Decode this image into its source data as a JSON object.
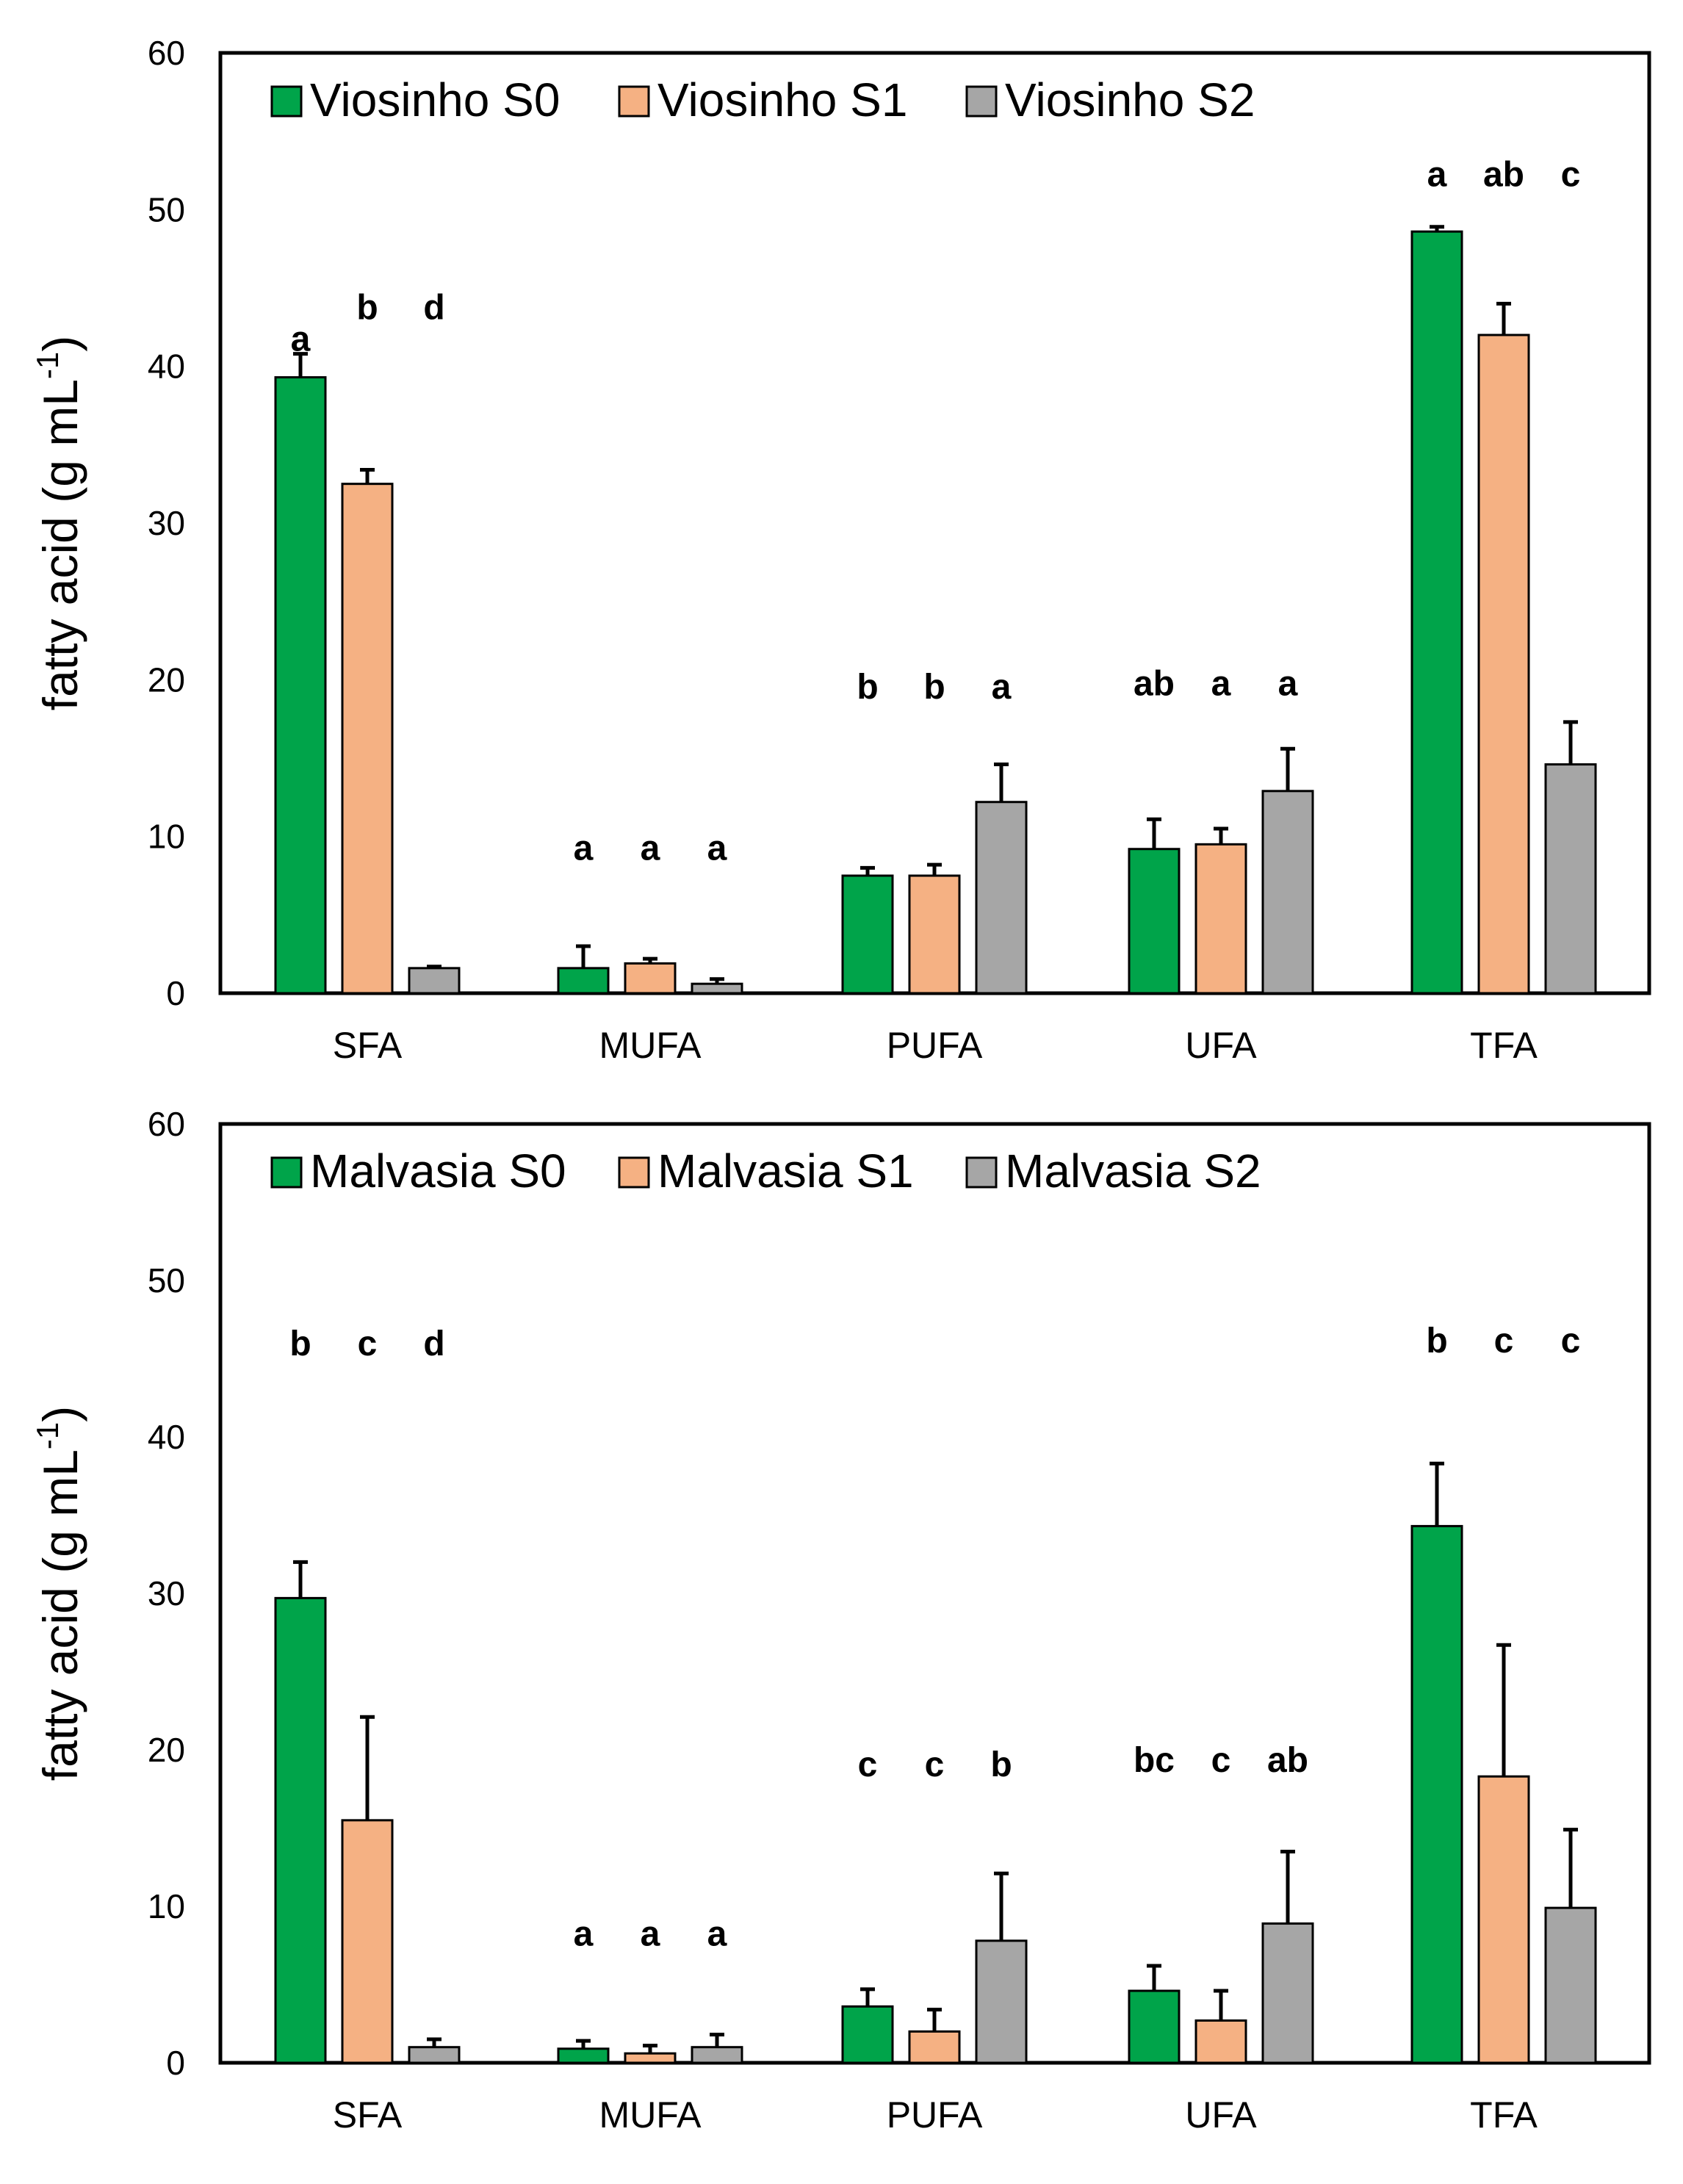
{
  "chart_data": [
    {
      "type": "bar",
      "title": "",
      "xlabel": "",
      "ylabel": "fatty acid (g mL",
      "ylabel_sup": "-1",
      "ylabel_close": ")",
      "ylim": [
        0,
        60
      ],
      "yticks": [
        "0",
        "10",
        "20",
        "30",
        "40",
        "50",
        "60"
      ],
      "categories": [
        "SFA",
        "MUFA",
        "PUFA",
        "UFA",
        "TFA"
      ],
      "legend_position": "top-left",
      "series": [
        {
          "name": "Viosinho S0",
          "color": "#00a44a",
          "values": [
            39.3,
            1.6,
            7.5,
            9.2,
            48.6
          ],
          "errors": [
            1.5,
            1.4,
            0.5,
            1.9,
            0.3
          ],
          "letters": [
            "a",
            "a",
            "b",
            "ab",
            "a"
          ]
        },
        {
          "name": "Viosinho S1",
          "color": "#f5b183",
          "values": [
            32.5,
            1.9,
            7.5,
            9.5,
            42.0
          ],
          "errors": [
            0.9,
            0.3,
            0.7,
            1.0,
            2.0
          ],
          "letters": [
            "b",
            "a",
            "b",
            "a",
            "ab"
          ]
        },
        {
          "name": "Viosinho S2",
          "color": "#a6a6a6",
          "values": [
            1.6,
            0.6,
            12.2,
            12.9,
            14.6
          ],
          "errors": [
            0.1,
            0.3,
            2.4,
            2.7,
            2.7
          ],
          "letters": [
            "d",
            "a",
            "a",
            "a",
            "c"
          ]
        }
      ]
    },
    {
      "type": "bar",
      "title": "",
      "xlabel": "",
      "ylabel": "fatty acid (g mL",
      "ylabel_sup": "-1",
      "ylabel_close": ")",
      "ylim": [
        0,
        60
      ],
      "yticks": [
        "0",
        "10",
        "20",
        "30",
        "40",
        "50",
        "60"
      ],
      "categories": [
        "SFA",
        "MUFA",
        "PUFA",
        "UFA",
        "TFA"
      ],
      "legend_position": "top-left",
      "series": [
        {
          "name": "Malvasia S0",
          "color": "#00a44a",
          "values": [
            29.7,
            0.9,
            3.6,
            4.6,
            34.3
          ],
          "errors": [
            2.3,
            0.5,
            1.1,
            1.6,
            4.0
          ],
          "letters": [
            "b",
            "a",
            "c",
            "bc",
            "b"
          ]
        },
        {
          "name": "Malvasia S1",
          "color": "#f5b183",
          "values": [
            15.5,
            0.6,
            2.0,
            2.7,
            18.3
          ],
          "errors": [
            6.6,
            0.5,
            1.4,
            1.9,
            8.4
          ],
          "letters": [
            "c",
            "a",
            "c",
            "c",
            "c"
          ]
        },
        {
          "name": "Malvasia S2",
          "color": "#a6a6a6",
          "values": [
            1.0,
            1.0,
            7.8,
            8.9,
            9.9
          ],
          "errors": [
            0.5,
            0.8,
            4.3,
            4.6,
            5.0
          ],
          "letters": [
            "d",
            "a",
            "b",
            "ab",
            "c"
          ]
        }
      ]
    }
  ]
}
